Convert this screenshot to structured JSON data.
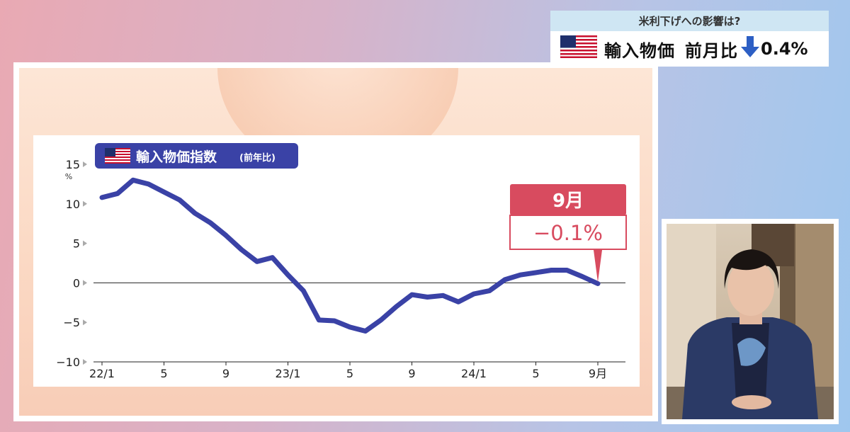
{
  "caption": {
    "subtitle": "米利下げへの影響は?",
    "title": "輸入物価",
    "label": "前月比",
    "value": "0.4%",
    "direction_icon": "down-arrow-icon",
    "flag_icon": "us-flag-icon"
  },
  "colors": {
    "line": "#3a42a6",
    "badge_bg": "#3a42a6",
    "callout": "#d84b5f",
    "arrow": "#2d5fc4"
  },
  "chart_data": {
    "type": "line",
    "title": "輸入物価指数",
    "title_suffix": "(前年比)",
    "ylabel_unit": "%",
    "yticks": [
      15,
      10,
      5,
      0,
      -5,
      -10
    ],
    "ylim": [
      -10,
      15
    ],
    "xticks": [
      "22/1",
      "5",
      "9",
      "23/1",
      "5",
      "9",
      "24/1",
      "5",
      "9月"
    ],
    "series": [
      {
        "values": [
          10.8,
          11.3,
          13.0,
          12.5,
          11.5,
          10.5,
          8.8,
          7.6,
          6.0,
          4.2,
          2.7,
          3.2,
          1.0,
          -1.0,
          -4.7,
          -4.8,
          -5.6,
          -6.1,
          -4.7,
          -3.0,
          -1.5,
          -1.8,
          -1.6,
          -2.4,
          -1.4,
          -1.0,
          0.4,
          1.0,
          1.3,
          1.6,
          1.6,
          0.8,
          -0.1
        ]
      }
    ],
    "callout": {
      "period": "9月",
      "value": "−0.1%"
    },
    "grid": false
  }
}
